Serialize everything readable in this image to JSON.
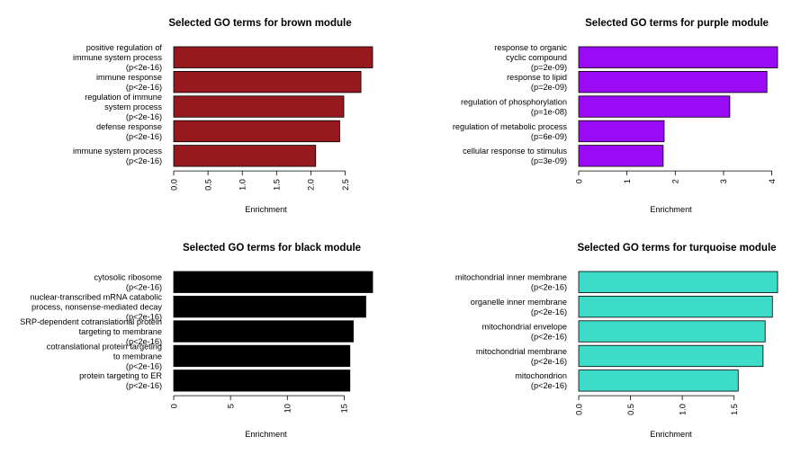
{
  "chart_data": [
    {
      "type": "bar",
      "orientation": "horizontal",
      "title": "Selected GO terms for brown module",
      "xlabel": "Enrichment",
      "ylabel": "",
      "color": "#96191e",
      "xlim": [
        0,
        2.9
      ],
      "xticks": [
        "0.0",
        "0.5",
        "1.0",
        "1.5",
        "2.0",
        "2.5"
      ],
      "xtick_values": [
        0,
        0.5,
        1.0,
        1.5,
        2.0,
        2.5
      ],
      "categories": [
        [
          "positive regulation of",
          "immune system process",
          "(p<2e-16)"
        ],
        [
          "immune response",
          "(p<2e-16)"
        ],
        [
          "regulation of immune",
          "system process",
          "(p<2e-16)"
        ],
        [
          "defense response",
          "(p<2e-16)"
        ],
        [
          "immune system process",
          "(p<2e-16)"
        ]
      ],
      "values": [
        2.9,
        2.73,
        2.48,
        2.42,
        2.07
      ]
    },
    {
      "type": "bar",
      "orientation": "horizontal",
      "title": "Selected GO terms for purple module",
      "xlabel": "Enrichment",
      "ylabel": "",
      "color": "#9a0bf5",
      "xlim": [
        0,
        4.12
      ],
      "xticks": [
        "0",
        "1",
        "2",
        "3",
        "4"
      ],
      "xtick_values": [
        0,
        1,
        2,
        3,
        4
      ],
      "categories": [
        [
          "response to organic",
          "cyclic compound",
          "(p=2e-09)"
        ],
        [
          "response to lipid",
          "(p=2e-09)"
        ],
        [
          "regulation of phosphorylation",
          "(p=1e-08)"
        ],
        [
          "regulation of metabolic process",
          "(p=6e-09)"
        ],
        [
          "cellular response to stimulus",
          "(p=3e-09)"
        ]
      ],
      "values": [
        4.12,
        3.9,
        3.13,
        1.77,
        1.75
      ]
    },
    {
      "type": "bar",
      "orientation": "horizontal",
      "title": "Selected GO terms for black module",
      "xlabel": "Enrichment",
      "ylabel": "",
      "color": "#000000",
      "xlim": [
        0,
        17.5
      ],
      "xticks": [
        "0",
        "5",
        "10",
        "15"
      ],
      "xtick_values": [
        0,
        5,
        10,
        15
      ],
      "categories": [
        [
          "cytosolic ribosome",
          "(p<2e-16)"
        ],
        [
          "nuclear-transcribed mRNA catabolic",
          "process, nonsense-mediated decay",
          "(p<2e-16)"
        ],
        [
          "SRP-dependent cotranslational protein",
          "targeting to membrane",
          "(p<2e-16)"
        ],
        [
          "cotranslational protein targeting",
          "to membrane",
          "(p<2e-16)"
        ],
        [
          "protein targeting to ER",
          "(p<2e-16)"
        ]
      ],
      "values": [
        17.5,
        16.9,
        15.8,
        15.5,
        15.5
      ]
    },
    {
      "type": "bar",
      "orientation": "horizontal",
      "title": "Selected GO terms for turquoise module",
      "xlabel": "Enrichment",
      "ylabel": "",
      "color": "#3ddcc8",
      "xlim": [
        0,
        1.92
      ],
      "xticks": [
        "0.0",
        "0.5",
        "1.0",
        "1.5"
      ],
      "xtick_values": [
        0,
        0.5,
        1.0,
        1.5
      ],
      "categories": [
        [
          "mitochondrial inner membrane",
          "(p<2e-16)"
        ],
        [
          "organelle inner membrane",
          "(p<2e-16)"
        ],
        [
          "mitochondrial envelope",
          "(p<2e-16)"
        ],
        [
          "mitochondrial membrane",
          "(p<2e-16)"
        ],
        [
          "mitochondrion",
          "(p<2e-16)"
        ]
      ],
      "values": [
        1.92,
        1.87,
        1.8,
        1.78,
        1.54
      ]
    }
  ]
}
